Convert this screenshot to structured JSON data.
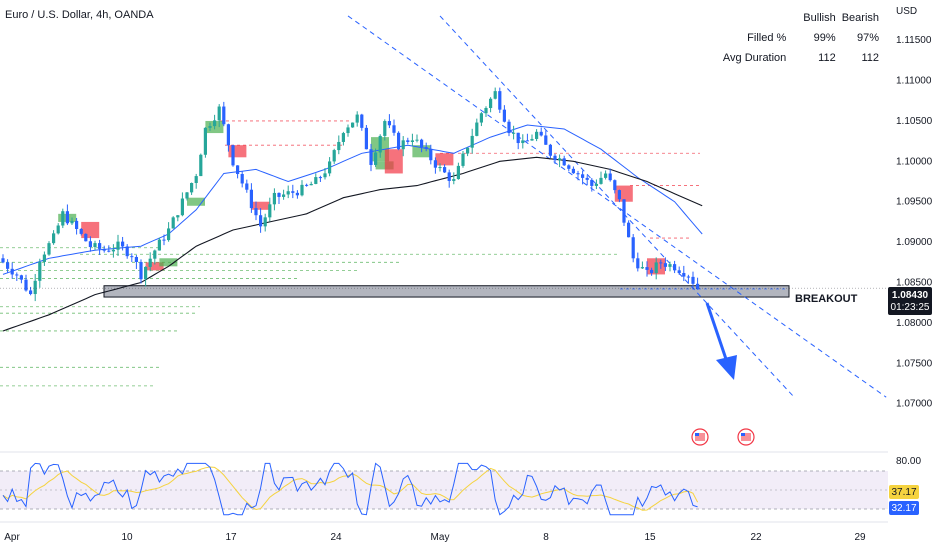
{
  "title": "Euro / U.S. Dollar, 4h, OANDA",
  "currency": "USD",
  "stats": {
    "headers": [
      "Bullish",
      "Bearish"
    ],
    "rows": [
      {
        "label": "Filled %",
        "bullish": "99%",
        "bearish": "97%"
      },
      {
        "label": "Avg Duration",
        "bullish": "112",
        "bearish": "112"
      }
    ]
  },
  "breakout_label": "BREAKOUT",
  "price_badge": {
    "price": "1.08430",
    "timer": "01:23:25"
  },
  "rsi_badges": {
    "ma": "37.17",
    "rsi": "32.17"
  },
  "colors": {
    "up": "#26a69a",
    "down": "#2962ff",
    "bullish_fvg": "#4caf50",
    "bearish_fvg": "#f23645",
    "ma_fast": "#2962ff",
    "ma_slow": "#131722",
    "rsi": "#2962ff",
    "rsi_ma": "#f5d33f"
  },
  "chart_data": {
    "type": "candlestick",
    "y_ticks": [
      "1.11500",
      "1.11000",
      "1.10500",
      "1.10000",
      "1.09500",
      "1.09000",
      "1.08500",
      "1.08000",
      "1.07500",
      "1.07000"
    ],
    "ylim": [
      1.0655,
      1.1175
    ],
    "x_ticks": [
      "Apr",
      "10",
      "17",
      "24",
      "May",
      "8",
      "15",
      "22",
      "29"
    ],
    "rsi_ticks": [
      "80.00"
    ],
    "rsi_levels": [
      70,
      50,
      30
    ],
    "close_path": [
      [
        0,
        1.0875
      ],
      [
        3,
        1.086
      ],
      [
        6,
        1.0835
      ],
      [
        8,
        1.088
      ],
      [
        11,
        1.0905
      ],
      [
        13,
        1.0935
      ],
      [
        16,
        1.0915
      ],
      [
        19,
        1.0895
      ],
      [
        22,
        1.089
      ],
      [
        25,
        1.0895
      ],
      [
        28,
        1.0885
      ],
      [
        30,
        1.086
      ],
      [
        33,
        1.089
      ],
      [
        36,
        1.0915
      ],
      [
        39,
        1.095
      ],
      [
        42,
        1.0985
      ],
      [
        44,
        1.104
      ],
      [
        47,
        1.1065
      ],
      [
        50,
        1.1
      ],
      [
        53,
        1.096
      ],
      [
        56,
        1.092
      ],
      [
        59,
        1.0955
      ],
      [
        62,
        1.096
      ],
      [
        65,
        1.0965
      ],
      [
        68,
        1.0975
      ],
      [
        71,
        1.0995
      ],
      [
        74,
        1.104
      ],
      [
        77,
        1.1055
      ],
      [
        80,
        1.1
      ],
      [
        83,
        1.105
      ],
      [
        86,
        1.102
      ],
      [
        89,
        1.103
      ],
      [
        92,
        1.101
      ],
      [
        95,
        1.099
      ],
      [
        98,
        1.0975
      ],
      [
        101,
        1.102
      ],
      [
        104,
        1.106
      ],
      [
        107,
        1.1085
      ],
      [
        110,
        1.104
      ],
      [
        113,
        1.102
      ],
      [
        116,
        1.1035
      ],
      [
        119,
        1.101
      ],
      [
        122,
        1.1
      ],
      [
        125,
        1.0985
      ],
      [
        128,
        1.097
      ],
      [
        131,
        1.0985
      ],
      [
        134,
        1.095
      ],
      [
        137,
        1.088
      ],
      [
        140,
        1.086
      ],
      [
        143,
        1.0875
      ],
      [
        146,
        1.087
      ],
      [
        149,
        1.086
      ],
      [
        151,
        1.0843
      ]
    ],
    "ma_fast": [
      [
        0,
        1.086
      ],
      [
        10,
        1.088
      ],
      [
        20,
        1.089
      ],
      [
        30,
        1.0895
      ],
      [
        36,
        1.091
      ],
      [
        42,
        1.094
      ],
      [
        48,
        1.0985
      ],
      [
        55,
        1.099
      ],
      [
        62,
        1.0975
      ],
      [
        70,
        1.099
      ],
      [
        78,
        1.101
      ],
      [
        88,
        1.102
      ],
      [
        98,
        1.101
      ],
      [
        106,
        1.103
      ],
      [
        114,
        1.1045
      ],
      [
        122,
        1.104
      ],
      [
        130,
        1.1015
      ],
      [
        138,
        1.098
      ],
      [
        146,
        1.095
      ],
      [
        152,
        1.091
      ]
    ],
    "ma_slow": [
      [
        0,
        1.079
      ],
      [
        10,
        1.081
      ],
      [
        20,
        1.0835
      ],
      [
        30,
        1.085
      ],
      [
        36,
        1.087
      ],
      [
        42,
        1.0895
      ],
      [
        50,
        1.0915
      ],
      [
        58,
        1.0925
      ],
      [
        66,
        1.0935
      ],
      [
        74,
        1.0955
      ],
      [
        82,
        1.0965
      ],
      [
        90,
        1.097
      ],
      [
        100,
        1.0985
      ],
      [
        108,
        1.1
      ],
      [
        116,
        1.1005
      ],
      [
        124,
        1.1
      ],
      [
        132,
        1.099
      ],
      [
        140,
        1.0975
      ],
      [
        146,
        1.096
      ],
      [
        152,
        1.0945
      ]
    ],
    "support_zone": [
      1.0832,
      1.0846
    ],
    "channel": {
      "upper": [
        [
          1.118,
          75
        ],
        [
          1.0708,
          192
        ]
      ],
      "lower": [
        [
          1.118,
          95
        ],
        [
          1.0708,
          172
        ]
      ]
    },
    "rsi_current": 32.17,
    "rsi_ma_current": 37.17
  }
}
